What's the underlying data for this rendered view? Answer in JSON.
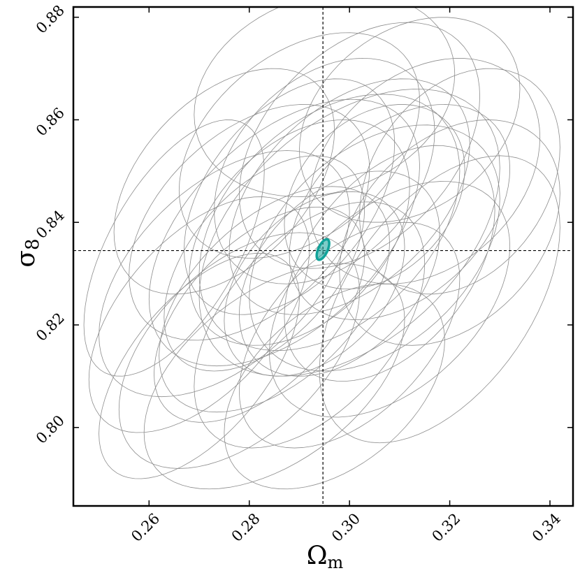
{
  "chart_data": {
    "type": "contour",
    "xlabel": {
      "base": "Ω",
      "sub": "m"
    },
    "ylabel": {
      "base": "σ",
      "sub": "8"
    },
    "xlim": [
      0.2449,
      0.3446
    ],
    "ylim": [
      0.7847,
      0.882
    ],
    "xticks": [
      0.26,
      0.28,
      {
        "value": 0.3,
        "label": "0.30"
      },
      0.32,
      0.34
    ],
    "yticks": [
      {
        "value": 0.8,
        "label": "0.80"
      },
      0.82,
      0.84,
      0.86,
      0.88
    ],
    "truth": {
      "x": 0.2947,
      "y": 0.8345
    },
    "contour_color": "#8c8c8c",
    "ellipses": [
      {
        "cx": 0.275,
        "cy": 0.83,
        "sx": 0.025,
        "sy": 0.024,
        "rho": 0.5
      },
      {
        "cx": 0.29,
        "cy": 0.838,
        "sx": 0.022,
        "sy": 0.022,
        "rho": 0.4
      },
      {
        "cx": 0.3,
        "cy": 0.845,
        "sx": 0.024,
        "sy": 0.023,
        "rho": 0.45
      },
      {
        "cx": 0.285,
        "cy": 0.825,
        "sx": 0.023,
        "sy": 0.022,
        "rho": 0.5
      },
      {
        "cx": 0.305,
        "cy": 0.835,
        "sx": 0.025,
        "sy": 0.024,
        "rho": 0.4
      },
      {
        "cx": 0.295,
        "cy": 0.85,
        "sx": 0.022,
        "sy": 0.022,
        "rho": 0.35
      },
      {
        "cx": 0.28,
        "cy": 0.84,
        "sx": 0.024,
        "sy": 0.023,
        "rho": 0.45
      },
      {
        "cx": 0.31,
        "cy": 0.842,
        "sx": 0.022,
        "sy": 0.021,
        "rho": 0.4
      },
      {
        "cx": 0.292,
        "cy": 0.82,
        "sx": 0.023,
        "sy": 0.024,
        "rho": 0.5
      },
      {
        "cx": 0.27,
        "cy": 0.822,
        "sx": 0.022,
        "sy": 0.023,
        "rho": 0.55
      },
      {
        "cx": 0.315,
        "cy": 0.85,
        "sx": 0.023,
        "sy": 0.022,
        "rho": 0.3
      },
      {
        "cx": 0.298,
        "cy": 0.83,
        "sx": 0.02,
        "sy": 0.02,
        "rho": 0.4
      },
      {
        "cx": 0.288,
        "cy": 0.845,
        "sx": 0.021,
        "sy": 0.023,
        "rho": 0.45
      },
      {
        "cx": 0.302,
        "cy": 0.855,
        "sx": 0.024,
        "sy": 0.024,
        "rho": 0.4
      },
      {
        "cx": 0.278,
        "cy": 0.815,
        "sx": 0.024,
        "sy": 0.023,
        "rho": 0.5
      },
      {
        "cx": 0.308,
        "cy": 0.825,
        "sx": 0.024,
        "sy": 0.023,
        "rho": 0.45
      },
      {
        "cx": 0.296,
        "cy": 0.84,
        "sx": 0.026,
        "sy": 0.025,
        "rho": 0.4
      },
      {
        "cx": 0.283,
        "cy": 0.832,
        "sx": 0.02,
        "sy": 0.021,
        "rho": 0.5
      },
      {
        "cx": 0.32,
        "cy": 0.838,
        "sx": 0.022,
        "sy": 0.022,
        "rho": 0.35
      },
      {
        "cx": 0.265,
        "cy": 0.835,
        "sx": 0.018,
        "sy": 0.025,
        "rho": 0.6
      },
      {
        "cx": 0.3,
        "cy": 0.818,
        "sx": 0.022,
        "sy": 0.022,
        "rho": 0.5
      },
      {
        "cx": 0.29,
        "cy": 0.855,
        "sx": 0.024,
        "sy": 0.022,
        "rho": 0.4
      },
      {
        "cx": 0.312,
        "cy": 0.86,
        "sx": 0.022,
        "sy": 0.02,
        "rho": 0.3
      },
      {
        "cx": 0.285,
        "cy": 0.81,
        "sx": 0.026,
        "sy": 0.022,
        "rho": 0.5
      },
      {
        "cx": 0.318,
        "cy": 0.825,
        "sx": 0.024,
        "sy": 0.028,
        "rho": 0.5
      },
      {
        "cx": 0.295,
        "cy": 0.865,
        "sx": 0.026,
        "sy": 0.02,
        "rho": 0.2
      },
      {
        "cx": 0.275,
        "cy": 0.848,
        "sx": 0.022,
        "sy": 0.022,
        "rho": 0.45
      },
      {
        "cx": 0.305,
        "cy": 0.845,
        "sx": 0.018,
        "sy": 0.018,
        "rho": 0.3
      },
      {
        "cx": 0.293,
        "cy": 0.828,
        "sx": 0.018,
        "sy": 0.018,
        "rho": 0.4
      },
      {
        "cx": 0.287,
        "cy": 0.838,
        "sx": 0.027,
        "sy": 0.026,
        "rho": 0.5
      },
      {
        "cx": 0.308,
        "cy": 0.832,
        "sx": 0.021,
        "sy": 0.023,
        "rho": 0.45
      },
      {
        "cx": 0.282,
        "cy": 0.822,
        "sx": 0.021,
        "sy": 0.021,
        "rho": 0.55
      },
      {
        "cx": 0.3,
        "cy": 0.838,
        "sx": 0.03,
        "sy": 0.028,
        "rho": 0.45
      },
      {
        "cx": 0.27,
        "cy": 0.812,
        "sx": 0.02,
        "sy": 0.022,
        "rho": 0.6
      },
      {
        "cx": 0.322,
        "cy": 0.848,
        "sx": 0.02,
        "sy": 0.022,
        "rho": 0.3
      },
      {
        "cx": 0.297,
        "cy": 0.808,
        "sx": 0.022,
        "sy": 0.02,
        "rho": 0.45
      }
    ],
    "highlight": {
      "cx": 0.2947,
      "cy": 0.8347,
      "sx": 0.00125,
      "sy": 0.002,
      "rho": 0.6,
      "color": "#12a39a"
    }
  }
}
